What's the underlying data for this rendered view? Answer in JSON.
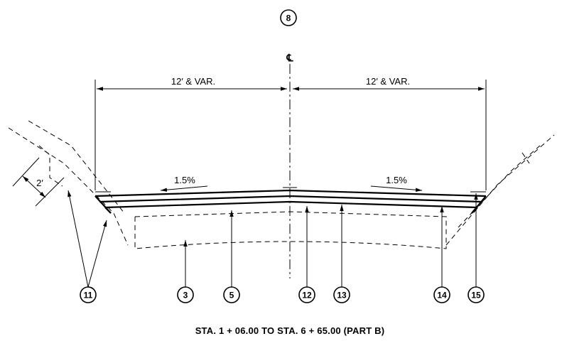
{
  "section_number": "8",
  "centerline_label": "℄",
  "dimensions": {
    "left": "12′ & VAR.",
    "right": "12′ & VAR."
  },
  "slopes": {
    "left": "1.5%",
    "right": "1.5%"
  },
  "offset_dimension": "2′",
  "callouts": [
    "11",
    "3",
    "5",
    "12",
    "13",
    "14",
    "15"
  ],
  "caption": "STA. 1 + 06.00  TO  STA. 6 + 65.00  (PART B)"
}
